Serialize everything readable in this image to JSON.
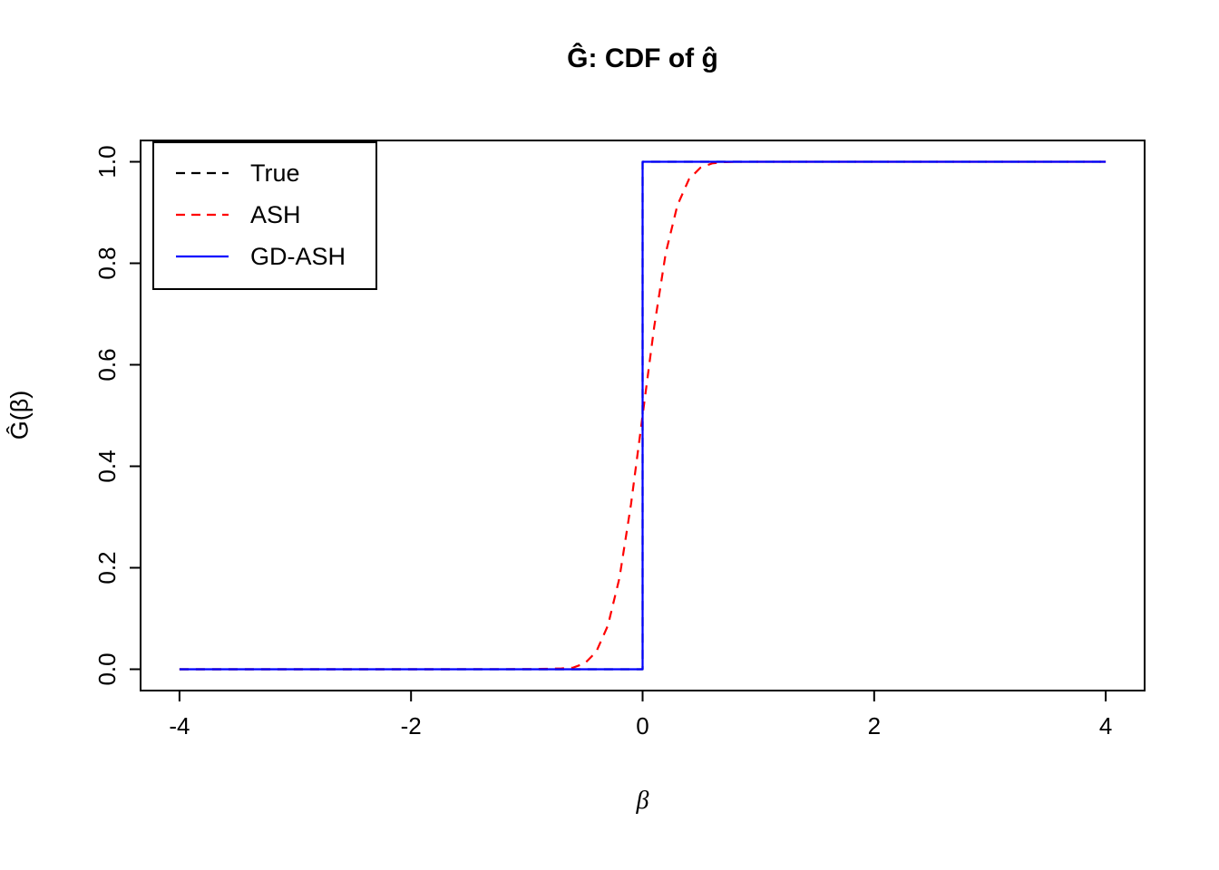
{
  "chart_data": {
    "type": "line",
    "title": "Ĝ: CDF of ĝ",
    "xlabel": "β",
    "ylabel": "Ĝ(β)",
    "xlim": [
      -4,
      4
    ],
    "ylim": [
      0,
      1
    ],
    "grid": false,
    "legend_position": "top-left",
    "x_ticks": [
      -4,
      -2,
      0,
      2,
      4
    ],
    "x_tick_labels": [
      "-4",
      "-2",
      "0",
      "2",
      "4"
    ],
    "y_ticks": [
      0.0,
      0.2,
      0.4,
      0.6,
      0.8,
      1.0
    ],
    "y_tick_labels": [
      "0.0",
      "0.2",
      "0.4",
      "0.6",
      "0.8",
      "1.0"
    ],
    "axis_color": "#000000",
    "background_color": "#ffffff",
    "series": [
      {
        "name": "True",
        "color": "#000000",
        "style": "dashed",
        "points": [
          [
            -4,
            0
          ],
          [
            0,
            0
          ],
          [
            0,
            1
          ],
          [
            4,
            1
          ]
        ]
      },
      {
        "name": "ASH",
        "color": "#ff0000",
        "style": "dashed",
        "points": [
          [
            -4,
            0
          ],
          [
            -2,
            0
          ],
          [
            -1,
            0.0002
          ],
          [
            -0.8,
            0.001
          ],
          [
            -0.7,
            0.0015
          ],
          [
            -0.6,
            0.0032
          ],
          [
            -0.5,
            0.0115
          ],
          [
            -0.4,
            0.0345
          ],
          [
            -0.3,
            0.086
          ],
          [
            -0.2,
            0.18
          ],
          [
            -0.1,
            0.325
          ],
          [
            0,
            0.5
          ],
          [
            0.1,
            0.675
          ],
          [
            0.2,
            0.82
          ],
          [
            0.3,
            0.914
          ],
          [
            0.4,
            0.9655
          ],
          [
            0.5,
            0.9885
          ],
          [
            0.6,
            0.9968
          ],
          [
            0.7,
            0.9993
          ],
          [
            0.8,
            0.9999
          ],
          [
            1,
            1
          ],
          [
            2,
            1
          ],
          [
            4,
            1
          ]
        ]
      },
      {
        "name": "GD-ASH",
        "color": "#0000ff",
        "style": "solid",
        "points": [
          [
            -4,
            0
          ],
          [
            0,
            0
          ],
          [
            0,
            1
          ],
          [
            4,
            1
          ]
        ]
      }
    ]
  }
}
